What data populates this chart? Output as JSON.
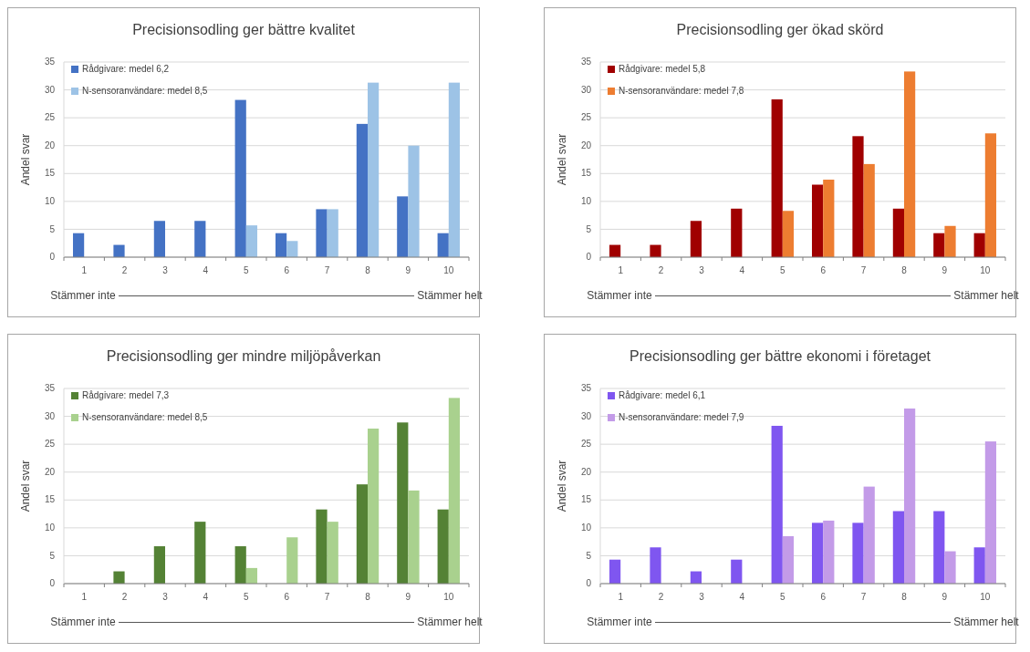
{
  "chart_data": [
    {
      "type": "bar",
      "title": "Precisionsodling ger bättre kvalitet",
      "ylabel": "Andel svar",
      "xlabel": "Stämmer inte ——————————————————————————— Stämmer helt",
      "categories": [
        "1",
        "2",
        "3",
        "4",
        "5",
        "6",
        "7",
        "8",
        "9",
        "10"
      ],
      "ylim": [
        0,
        35
      ],
      "yticks": [
        0,
        5,
        10,
        15,
        20,
        25,
        30,
        35
      ],
      "grid": "y",
      "legend": "top left",
      "series": [
        {
          "name": "Rådgivare: medel 6,2",
          "color": "#4472c4",
          "values": [
            4.3,
            2.2,
            6.5,
            6.5,
            28.2,
            4.3,
            8.6,
            23.9,
            10.9,
            4.3
          ]
        },
        {
          "name": "N-sensoranvändare: medel 8,5",
          "color": "#9dc3e6",
          "values": [
            0,
            0,
            0,
            0,
            5.7,
            2.9,
            8.6,
            31.3,
            20,
            31.3
          ]
        }
      ]
    },
    {
      "type": "bar",
      "title": "Precisionsodling ger ökad skörd",
      "ylabel": "Andel svar",
      "xlabel": "Stämmer inte ——————————————————————————— Stämmer helt",
      "categories": [
        "1",
        "2",
        "3",
        "4",
        "5",
        "6",
        "7",
        "8",
        "9",
        "10"
      ],
      "ylim": [
        0,
        35
      ],
      "yticks": [
        0,
        5,
        10,
        15,
        20,
        25,
        30,
        35
      ],
      "grid": "y",
      "legend": "top left",
      "series": [
        {
          "name": "Rådgivare: medel 5,8",
          "color": "#a00000",
          "values": [
            2.2,
            2.2,
            6.5,
            8.7,
            28.3,
            13,
            21.7,
            8.7,
            4.3,
            4.3
          ]
        },
        {
          "name": "N-sensoranvändare: medel 7,8",
          "color": "#ed7d31",
          "values": [
            0,
            0,
            0,
            0,
            8.3,
            13.9,
            16.7,
            33.3,
            5.6,
            22.2
          ]
        }
      ]
    },
    {
      "type": "bar",
      "title": "Precisionsodling ger mindre miljöpåverkan",
      "ylabel": "Andel svar",
      "xlabel": "Stämmer inte ——————————————————————————— Stämmer helt",
      "categories": [
        "1",
        "2",
        "3",
        "4",
        "5",
        "6",
        "7",
        "8",
        "9",
        "10"
      ],
      "ylim": [
        0,
        35
      ],
      "yticks": [
        0,
        5,
        10,
        15,
        20,
        25,
        30,
        35
      ],
      "grid": "y",
      "legend": "top left",
      "series": [
        {
          "name": "Rådgivare: medel 7,3",
          "color": "#548235",
          "values": [
            0,
            2.2,
            6.7,
            11.1,
            6.7,
            0,
            13.3,
            17.8,
            28.9,
            13.3
          ]
        },
        {
          "name": "N-sensoranvändare: medel 8,5",
          "color": "#a9d18e",
          "values": [
            0,
            0,
            0,
            0,
            2.8,
            8.3,
            11.1,
            27.8,
            16.7,
            33.3
          ]
        }
      ]
    },
    {
      "type": "bar",
      "title": "Precisionsodling ger bättre ekonomi i företaget",
      "ylabel": "Andel svar",
      "xlabel": "Stämmer inte ——————————————————————————— Stämmer helt",
      "categories": [
        "1",
        "2",
        "3",
        "4",
        "5",
        "6",
        "7",
        "8",
        "9",
        "10"
      ],
      "ylim": [
        0,
        35
      ],
      "yticks": [
        0,
        5,
        10,
        15,
        20,
        25,
        30,
        35
      ],
      "grid": "y",
      "legend": "top left",
      "series": [
        {
          "name": "Rådgivare: medel 6,1",
          "color": "#7f56f0",
          "values": [
            4.3,
            6.5,
            2.2,
            4.3,
            28.3,
            10.9,
            10.9,
            13,
            13,
            6.5
          ]
        },
        {
          "name": "N-sensoranvändare: medel 7,9",
          "color": "#c39be8",
          "values": [
            0,
            0,
            0,
            0,
            8.5,
            11.3,
            17.4,
            31.4,
            5.8,
            25.5
          ]
        }
      ]
    }
  ]
}
